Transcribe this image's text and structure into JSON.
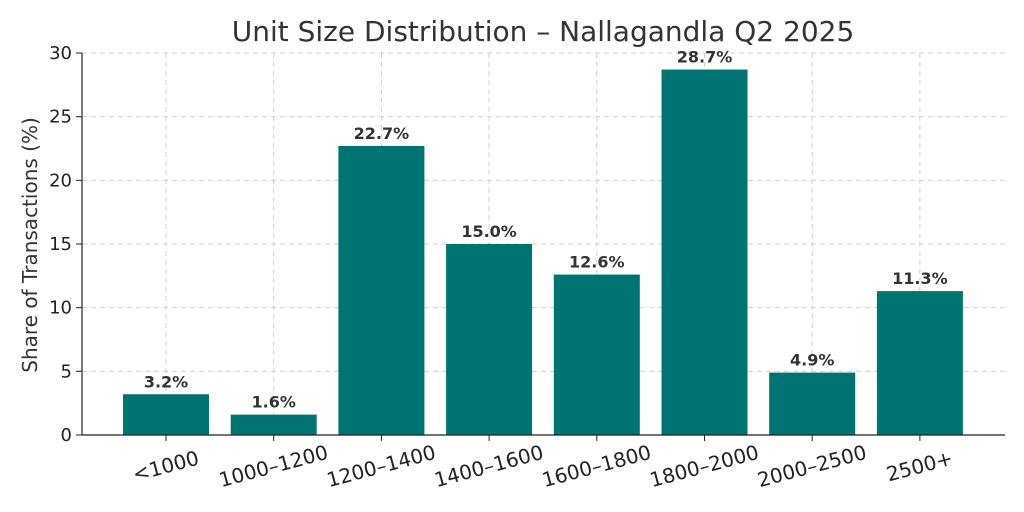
{
  "chart_data": {
    "type": "bar",
    "title": "Unit Size Distribution – Nallagandla Q2 2025",
    "xlabel": "",
    "ylabel": "Share of Transactions (%)",
    "categories": [
      "<1000",
      "1000–1200",
      "1200–1400",
      "1400–1600",
      "1600–1800",
      "1800–2000",
      "2000–2500",
      "2500+"
    ],
    "values": [
      3.2,
      1.6,
      22.7,
      15.0,
      12.6,
      28.7,
      4.9,
      11.3
    ],
    "data_labels": [
      "3.2%",
      "1.6%",
      "22.7%",
      "15.0%",
      "12.6%",
      "28.7%",
      "4.9%",
      "11.3%"
    ],
    "ylim": [
      0,
      30
    ],
    "yticks": [
      0,
      5,
      10,
      15,
      20,
      25,
      30
    ],
    "grid": true,
    "bar_color": "#007373"
  }
}
